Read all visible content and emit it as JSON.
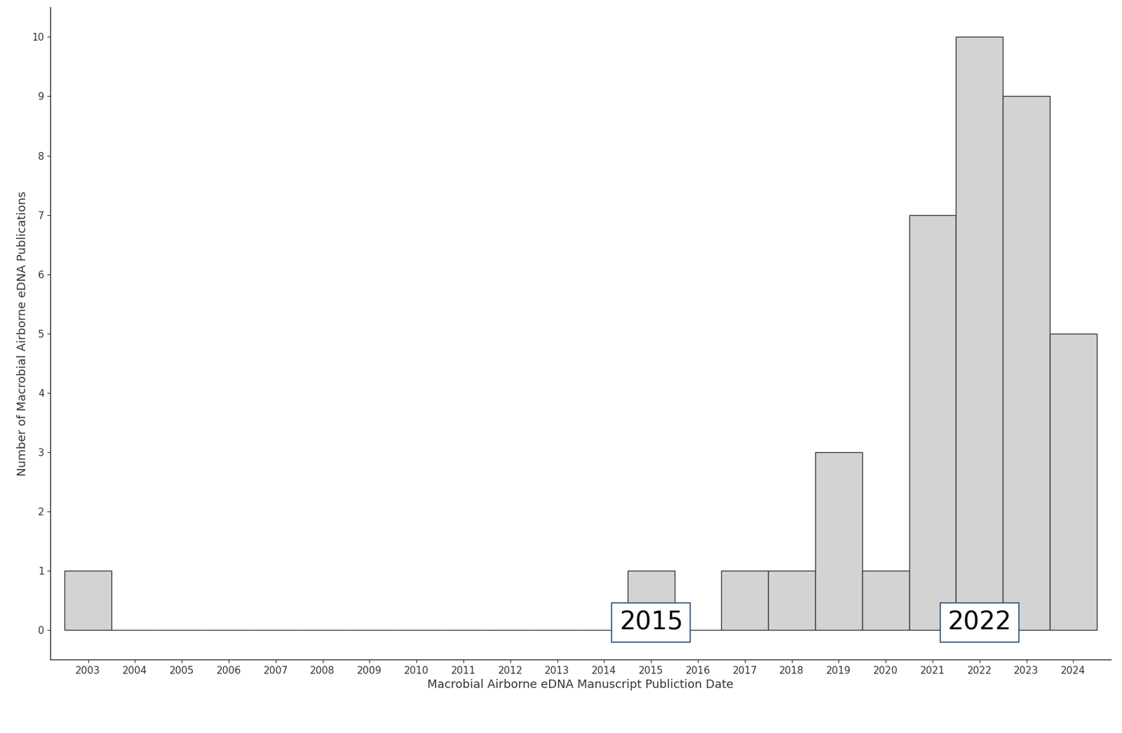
{
  "chart_data": {
    "type": "bar",
    "x_label": "Macrobial Airborne eDNA Manuscript Publiction Date",
    "y_label": "Number of Macrobial Airborne eDNA Publications",
    "categories": [
      "2003",
      "2004",
      "2005",
      "2006",
      "2007",
      "2008",
      "2009",
      "2010",
      "2011",
      "2012",
      "2013",
      "2014",
      "2015",
      "2016",
      "2017",
      "2018",
      "2019",
      "2020",
      "2021",
      "2022",
      "2023",
      "2024"
    ],
    "values": [
      1,
      0,
      0,
      0,
      0,
      0,
      0,
      0,
      0,
      0,
      0,
      0,
      1,
      0,
      1,
      1,
      3,
      1,
      7,
      10,
      9,
      5
    ],
    "color": "#d3d3d3",
    "ylim": [
      -0.5,
      10.5
    ],
    "yticks": [
      0,
      1,
      2,
      3,
      4,
      5,
      6,
      7,
      8,
      9,
      10
    ],
    "grid": false,
    "annotations": [
      "2015",
      "2022"
    ]
  }
}
